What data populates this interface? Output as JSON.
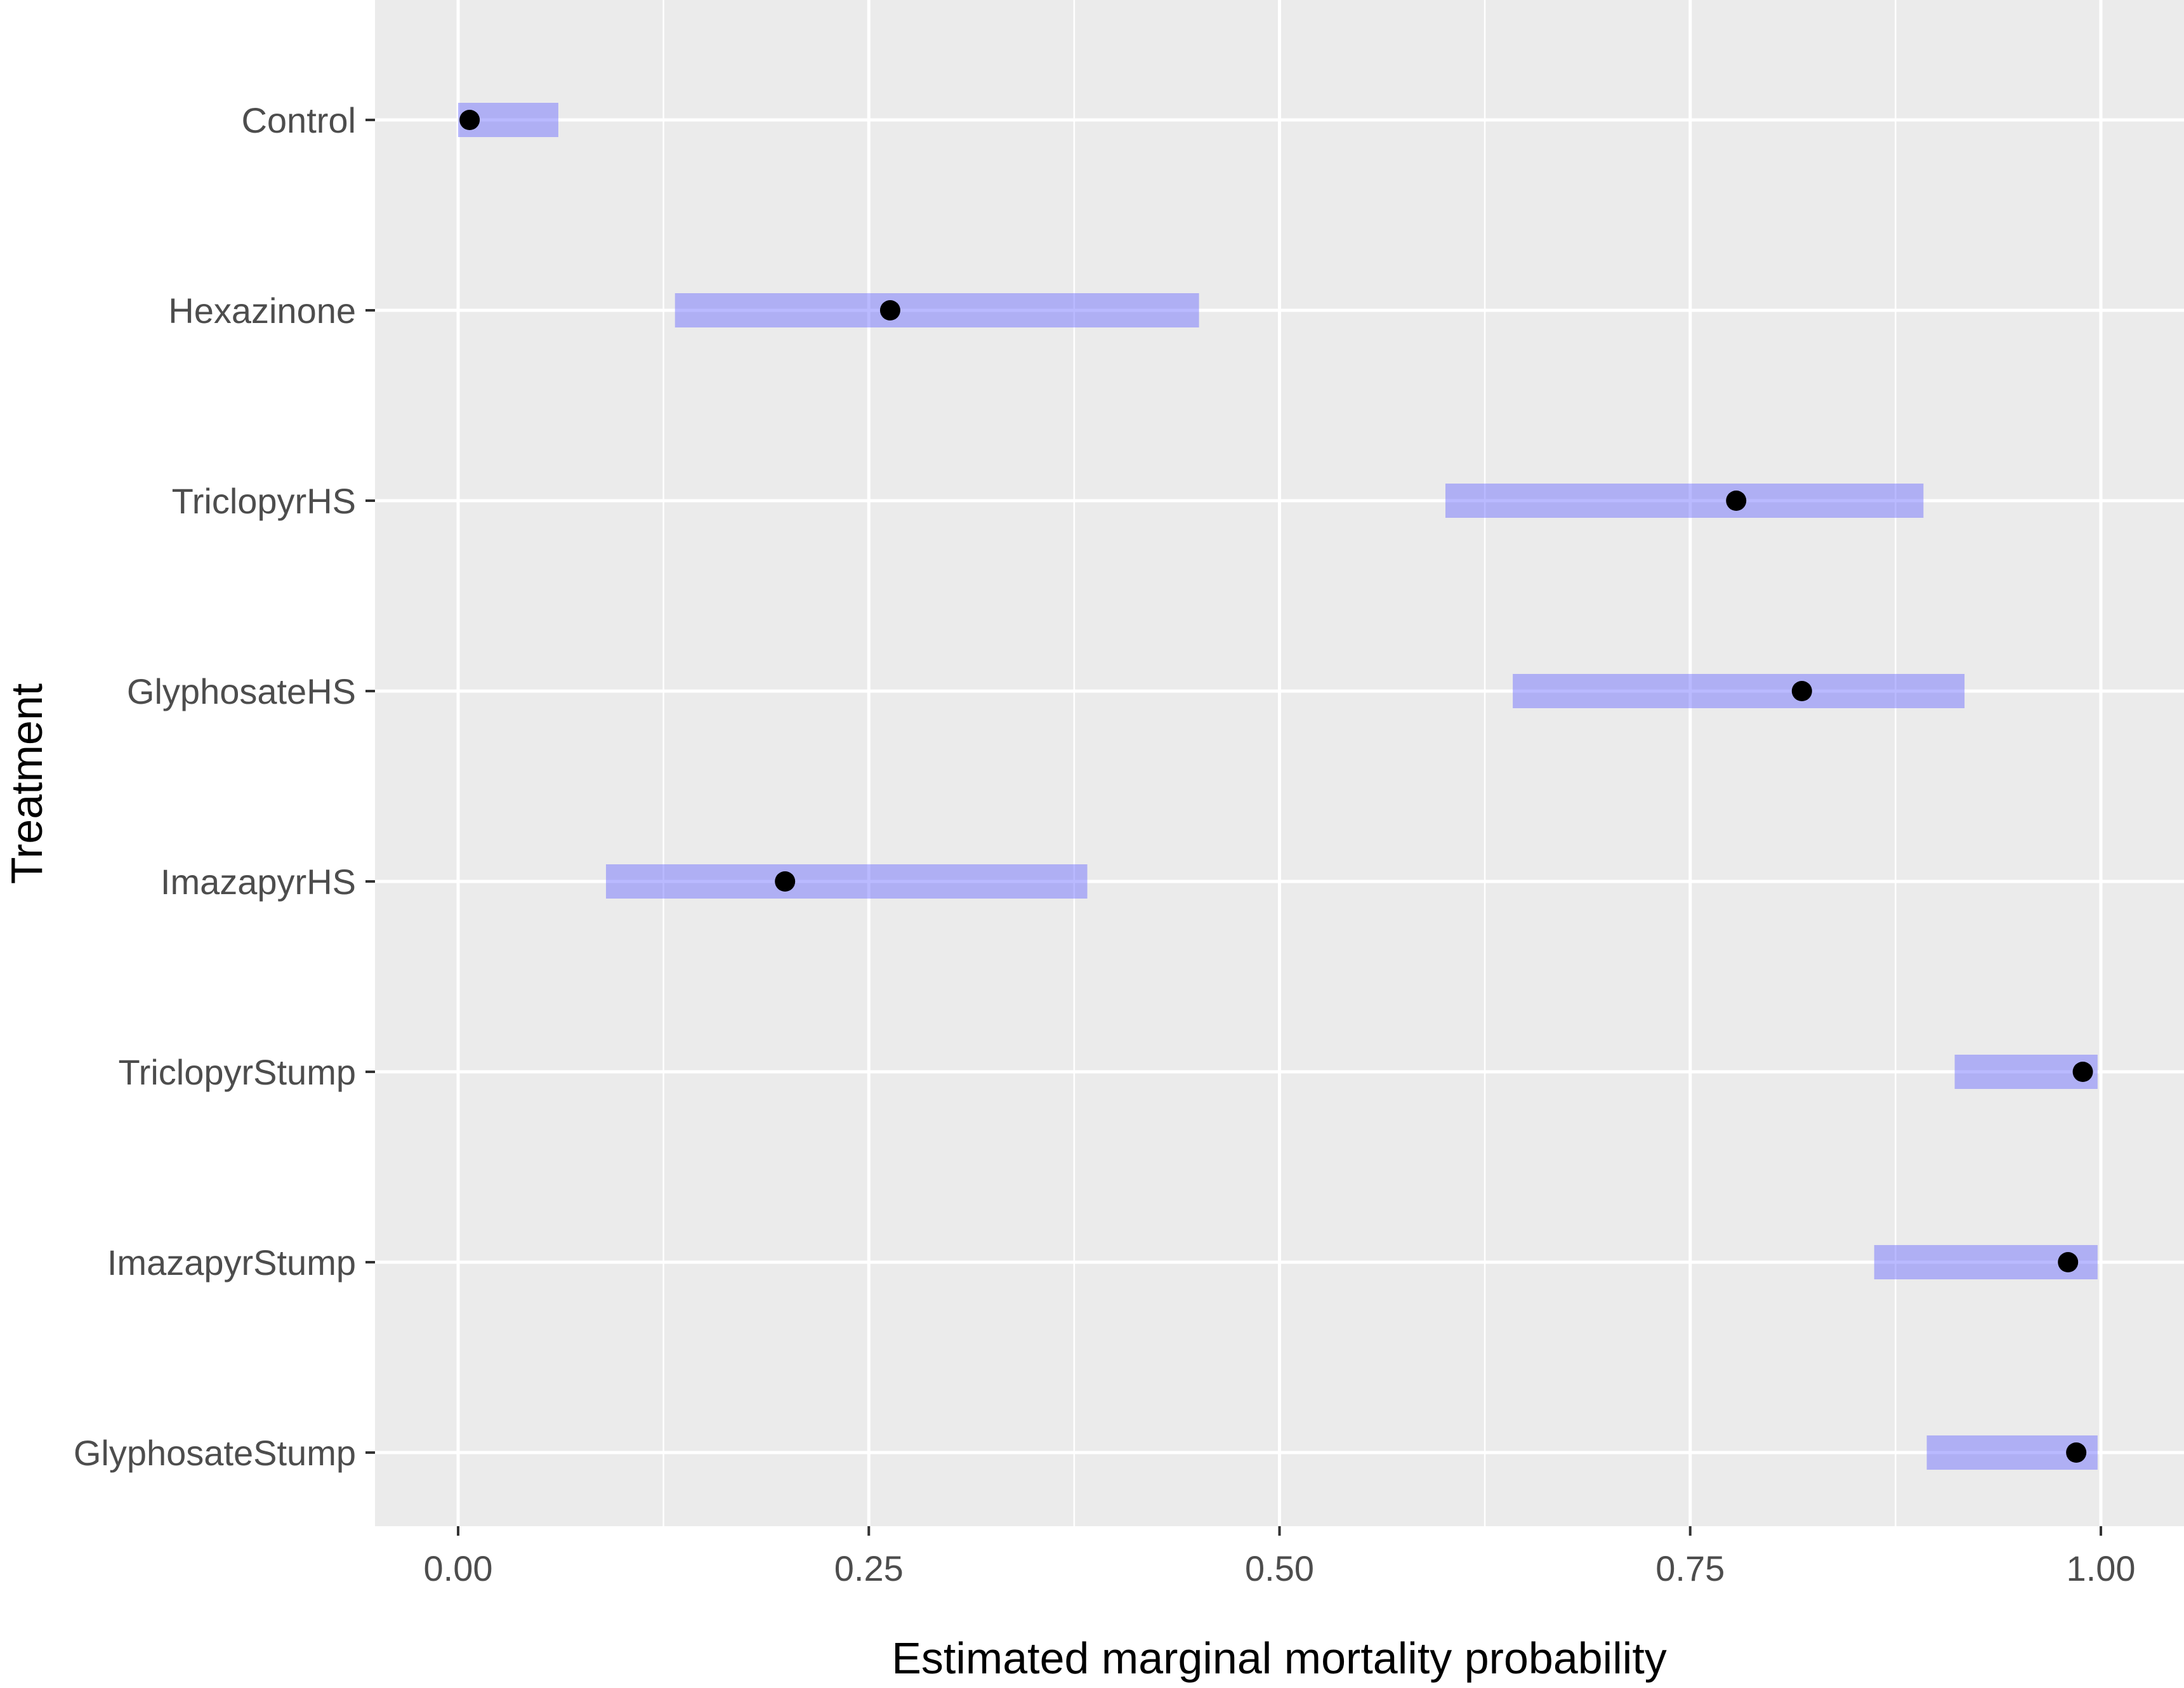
{
  "chart_data": {
    "type": "interval-dot",
    "title": "",
    "xlabel": "Estimated marginal mortality probability",
    "ylabel": "Treatment",
    "xlim": [
      -0.05,
      1.05
    ],
    "xticks": [
      0.0,
      0.25,
      0.5,
      0.75,
      1.0
    ],
    "xtick_labels": [
      "0.00",
      "0.25",
      "0.50",
      "0.75",
      "1.00"
    ],
    "grid": true,
    "categories": [
      "Control",
      "Hexazinone",
      "TriclopyrHS",
      "GlyphosateHS",
      "ImazapyrHS",
      "TriclopyrStump",
      "ImazapyrStump",
      "GlyphosateStump"
    ],
    "estimate": [
      0.007,
      0.263,
      0.778,
      0.818,
      0.199,
      0.989,
      0.98,
      0.985
    ],
    "lower": [
      0.0,
      0.132,
      0.601,
      0.642,
      0.09,
      0.911,
      0.862,
      0.894
    ],
    "upper": [
      0.061,
      0.451,
      0.892,
      0.917,
      0.383,
      0.998,
      0.998,
      0.998
    ],
    "colors": {
      "panel_background": "#ebebeb",
      "grid": "#ffffff",
      "interval": "#6666ff",
      "interval_opacity": 0.45,
      "point": "#000000",
      "tick": "#333333"
    }
  }
}
